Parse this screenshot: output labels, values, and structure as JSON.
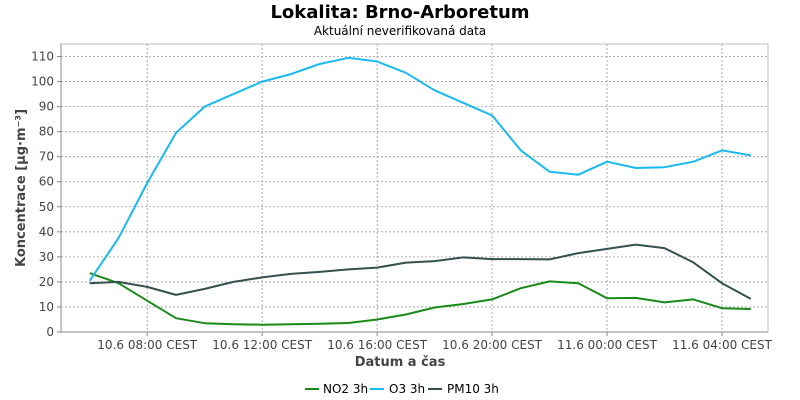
{
  "chart_data": {
    "type": "line",
    "title": "Lokalita: Brno-Arboretum",
    "subtitle": "Aktuální neverifikovaná data",
    "xlabel": "Datum a čas",
    "ylabel": "Koncentrace [µg·m⁻³]",
    "ylim": [
      0,
      115
    ],
    "yticks": [
      0,
      10,
      20,
      30,
      40,
      50,
      60,
      70,
      80,
      90,
      100,
      110
    ],
    "xlim": [
      5,
      29.6
    ],
    "xticks": [
      {
        "x": 8,
        "label": "10.6 08:00 CEST"
      },
      {
        "x": 12,
        "label": "10.6 12:00 CEST"
      },
      {
        "x": 16,
        "label": "10.6 16:00 CEST"
      },
      {
        "x": 20,
        "label": "10.6 20:00 CEST"
      },
      {
        "x": 24,
        "label": "11.6 00:00 CEST"
      },
      {
        "x": 28,
        "label": "11.6 04:00 CEST"
      }
    ],
    "grid": true,
    "legend_position": "bottom",
    "x": [
      6,
      7,
      8,
      9,
      10,
      11,
      12,
      13,
      14,
      15,
      16,
      17,
      18,
      19,
      20,
      21,
      22,
      23,
      24,
      25,
      26,
      27,
      28,
      29
    ],
    "series": [
      {
        "name": "NO2 3h",
        "color": "#1a8a1a",
        "values": [
          23.5,
          19.5,
          12.5,
          5.5,
          3.5,
          3.1,
          2.9,
          3.1,
          3.3,
          3.6,
          5,
          7,
          9.8,
          11.2,
          13,
          17.5,
          20.2,
          19.5,
          13.5,
          13.6,
          11.8,
          13,
          9.5,
          9.2
        ]
      },
      {
        "name": "O3 3h",
        "color": "#1ab9f0",
        "values": [
          20.5,
          37.5,
          59.5,
          79.5,
          90,
          95,
          100,
          103,
          107,
          109.5,
          108,
          103.5,
          96.5,
          91.5,
          86.5,
          72.5,
          64,
          62.8,
          68,
          65.5,
          65.8,
          68,
          72.5,
          70.5
        ]
      },
      {
        "name": "PM10 3h",
        "color": "#33524f",
        "values": [
          19.5,
          20,
          18,
          14.8,
          17.2,
          20,
          21.8,
          23.2,
          24,
          25,
          25.7,
          27.7,
          28.3,
          29.8,
          29.1,
          29.1,
          29,
          31.5,
          33.2,
          34.9,
          33.5,
          27.8,
          19.5,
          13.2
        ]
      }
    ]
  }
}
